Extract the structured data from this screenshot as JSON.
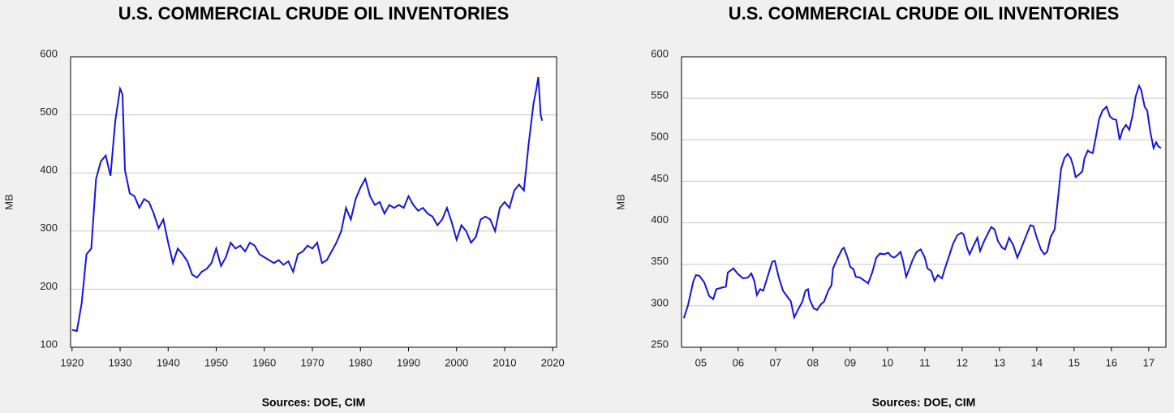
{
  "chart_data": [
    {
      "type": "line",
      "title": "U.S. COMMERCIAL CRUDE OIL INVENTORIES",
      "ylabel": "MB",
      "note": "Sources:  DOE, CIM",
      "color": "#1414e0",
      "grid": true,
      "x": [
        1920,
        1921,
        1922,
        1923,
        1924,
        1925,
        1926,
        1927,
        1928,
        1929,
        1930,
        1930.5,
        1931,
        1932,
        1933,
        1934,
        1935,
        1936,
        1937,
        1938,
        1939,
        1940,
        1941,
        1942,
        1943,
        1944,
        1945,
        1946,
        1947,
        1948,
        1949,
        1950,
        1951,
        1952,
        1953,
        1954,
        1955,
        1956,
        1957,
        1958,
        1959,
        1960,
        1961,
        1962,
        1963,
        1964,
        1965,
        1966,
        1967,
        1968,
        1969,
        1970,
        1971,
        1972,
        1973,
        1974,
        1975,
        1976,
        1977,
        1978,
        1979,
        1980,
        1981,
        1982,
        1983,
        1984,
        1985,
        1986,
        1987,
        1988,
        1989,
        1990,
        1991,
        1992,
        1993,
        1994,
        1995,
        1996,
        1997,
        1998,
        1999,
        2000,
        2001,
        2002,
        2003,
        2004,
        2005,
        2006,
        2007,
        2008,
        2009,
        2010,
        2011,
        2012,
        2013,
        2014,
        2015,
        2016,
        2016.5,
        2017,
        2017.5,
        2017.8
      ],
      "values": [
        130,
        128,
        175,
        260,
        270,
        390,
        420,
        430,
        395,
        490,
        545,
        535,
        405,
        365,
        360,
        340,
        355,
        350,
        330,
        305,
        320,
        280,
        245,
        270,
        260,
        248,
        225,
        220,
        230,
        235,
        245,
        270,
        240,
        255,
        280,
        270,
        275,
        265,
        280,
        275,
        260,
        255,
        250,
        245,
        250,
        242,
        248,
        230,
        260,
        265,
        275,
        270,
        280,
        245,
        250,
        265,
        280,
        300,
        340,
        320,
        355,
        375,
        390,
        360,
        345,
        350,
        330,
        345,
        340,
        345,
        340,
        360,
        345,
        335,
        340,
        330,
        325,
        310,
        320,
        340,
        315,
        285,
        310,
        300,
        280,
        290,
        320,
        325,
        320,
        300,
        340,
        350,
        340,
        370,
        380,
        370,
        450,
        520,
        540,
        565,
        500,
        490
      ],
      "xlim": [
        1919.7,
        2020.8
      ],
      "ylim": [
        100,
        600
      ],
      "xticks": [
        1920,
        1930,
        1940,
        1950,
        1960,
        1970,
        1980,
        1990,
        2000,
        2010,
        2020
      ],
      "yticks": [
        100,
        200,
        300,
        400,
        500,
        600
      ]
    },
    {
      "type": "line",
      "title": "U.S. COMMERCIAL CRUDE OIL INVENTORIES",
      "ylabel": "MB",
      "note": "Sources:  DOE, CIM",
      "color": "#1414e0",
      "grid": true,
      "x": [
        2005.04,
        2005.15,
        2005.3,
        2005.37,
        2005.46,
        2005.59,
        2005.72,
        2005.83,
        2005.91,
        2006.07,
        2006.17,
        2006.22,
        2006.37,
        2006.5,
        2006.63,
        2006.76,
        2006.85,
        2006.93,
        2007.0,
        2007.09,
        2007.17,
        2007.28,
        2007.41,
        2007.48,
        2007.59,
        2007.7,
        2007.8,
        2007.91,
        2008.0,
        2008.11,
        2008.22,
        2008.3,
        2008.37,
        2008.41,
        2008.52,
        2008.61,
        2008.72,
        2008.8,
        2008.91,
        2009.0,
        2009.04,
        2009.17,
        2009.28,
        2009.33,
        2009.43,
        2009.5,
        2009.59,
        2009.65,
        2009.76,
        2009.89,
        2009.98,
        2010.09,
        2010.2,
        2010.3,
        2010.41,
        2010.52,
        2010.59,
        2010.67,
        2010.74,
        2010.85,
        2010.91,
        2011.0,
        2011.09,
        2011.17,
        2011.28,
        2011.39,
        2011.5,
        2011.57,
        2011.67,
        2011.76,
        2011.85,
        2011.96,
        2012.04,
        2012.15,
        2012.26,
        2012.37,
        2012.48,
        2012.54,
        2012.63,
        2012.7,
        2012.8,
        2012.91,
        2012.98,
        2013.09,
        2013.2,
        2013.28,
        2013.37,
        2013.46,
        2013.57,
        2013.65,
        2013.76,
        2013.87,
        2013.98,
        2014.09,
        2014.22,
        2014.33,
        2014.41,
        2014.5,
        2014.61,
        2014.7,
        2014.78,
        2014.87,
        2014.98,
        2015.07,
        2015.15,
        2015.24,
        2015.33,
        2015.41,
        2015.48,
        2015.54,
        2015.63,
        2015.72,
        2015.78,
        2015.87,
        2015.93,
        2016.0,
        2016.09,
        2016.17,
        2016.26,
        2016.37,
        2016.46,
        2016.54,
        2016.63,
        2016.72,
        2016.8,
        2016.89,
        2016.98,
        2017.07,
        2017.15,
        2017.24,
        2017.3,
        2017.39,
        2017.46,
        2017.54,
        2017.63,
        2017.7,
        2017.76,
        2017.83
      ],
      "values": [
        285,
        300,
        330,
        337,
        336,
        328,
        312,
        308,
        320,
        322,
        323,
        340,
        345,
        338,
        333,
        334,
        339,
        330,
        313,
        320,
        318,
        334,
        353,
        354,
        334,
        318,
        312,
        305,
        286,
        296,
        305,
        318,
        320,
        308,
        297,
        295,
        302,
        305,
        318,
        325,
        345,
        358,
        368,
        370,
        358,
        347,
        344,
        335,
        334,
        330,
        327,
        340,
        358,
        363,
        362,
        364,
        360,
        358,
        360,
        365,
        355,
        335,
        345,
        355,
        365,
        368,
        358,
        345,
        342,
        330,
        337,
        333,
        345,
        360,
        375,
        385,
        388,
        386,
        370,
        362,
        372,
        382,
        366,
        378,
        388,
        395,
        392,
        378,
        370,
        368,
        382,
        373,
        358,
        370,
        385,
        397,
        396,
        382,
        368,
        362,
        365,
        383,
        392,
        430,
        465,
        478,
        483,
        478,
        468,
        455,
        458,
        462,
        478,
        487,
        485,
        484,
        505,
        525,
        535,
        540,
        528,
        525,
        524,
        500,
        512,
        518,
        512,
        530,
        552,
        565,
        560,
        540,
        535,
        510,
        490,
        497,
        492,
        490
      ],
      "xlim": [
        2004.98,
        2017.96
      ],
      "ylim": [
        250,
        600
      ],
      "xticks": [
        {
          "value": 2005.5,
          "label": "05"
        },
        {
          "value": 2006.5,
          "label": "06"
        },
        {
          "value": 2007.5,
          "label": "07"
        },
        {
          "value": 2008.5,
          "label": "08"
        },
        {
          "value": 2009.5,
          "label": "09"
        },
        {
          "value": 2010.5,
          "label": "10"
        },
        {
          "value": 2011.5,
          "label": "11"
        },
        {
          "value": 2012.5,
          "label": "12"
        },
        {
          "value": 2013.5,
          "label": "13"
        },
        {
          "value": 2014.5,
          "label": "14"
        },
        {
          "value": 2015.5,
          "label": "15"
        },
        {
          "value": 2016.5,
          "label": "16"
        },
        {
          "value": 2017.5,
          "label": "17"
        }
      ],
      "yticks": [
        250,
        300,
        350,
        400,
        450,
        500,
        550,
        600
      ]
    }
  ]
}
